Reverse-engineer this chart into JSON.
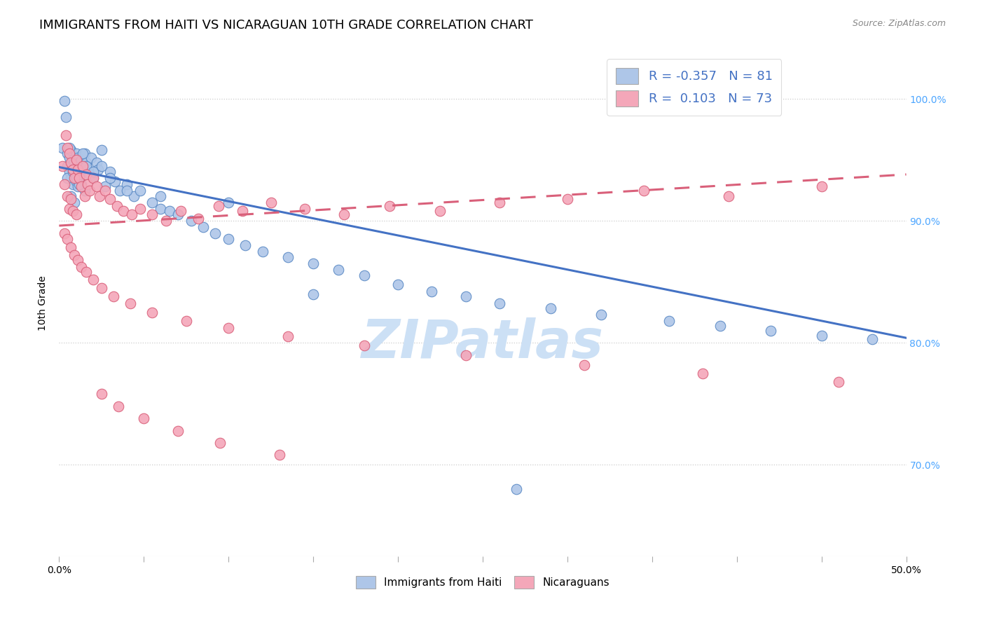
{
  "title": "IMMIGRANTS FROM HAITI VS NICARAGUAN 10TH GRADE CORRELATION CHART",
  "source_text": "Source: ZipAtlas.com",
  "ylabel": "10th Grade",
  "legend_label_haiti": "Immigrants from Haiti",
  "legend_label_nic": "Nicaraguans",
  "haiti_color": "#aec6e8",
  "nic_color": "#f4a7b9",
  "haiti_edge_color": "#5b8ac5",
  "nic_edge_color": "#d9607a",
  "haiti_line_color": "#4472c4",
  "nic_line_color": "#d9607a",
  "title_fontsize": 13,
  "axis_label_fontsize": 10,
  "tick_fontsize": 10,
  "right_tick_color": "#4da6ff",
  "xmin": 0.0,
  "xmax": 0.5,
  "ymin": 0.625,
  "ymax": 1.04,
  "watermark_text": "ZIPatlas",
  "watermark_color": "#cce0f5",
  "haiti_line_x0": 0.0,
  "haiti_line_y0": 0.944,
  "haiti_line_x1": 0.5,
  "haiti_line_y1": 0.804,
  "nic_line_x0": 0.0,
  "nic_line_y0": 0.896,
  "nic_line_x1": 0.5,
  "nic_line_y1": 0.938,
  "haiti_scatter_x": [
    0.002,
    0.003,
    0.004,
    0.005,
    0.005,
    0.006,
    0.006,
    0.007,
    0.007,
    0.008,
    0.008,
    0.009,
    0.009,
    0.01,
    0.01,
    0.011,
    0.011,
    0.012,
    0.012,
    0.013,
    0.013,
    0.014,
    0.015,
    0.015,
    0.016,
    0.017,
    0.018,
    0.019,
    0.02,
    0.022,
    0.023,
    0.025,
    0.027,
    0.03,
    0.033,
    0.036,
    0.04,
    0.044,
    0.048,
    0.055,
    0.06,
    0.065,
    0.07,
    0.078,
    0.085,
    0.092,
    0.1,
    0.11,
    0.12,
    0.135,
    0.15,
    0.165,
    0.18,
    0.2,
    0.22,
    0.24,
    0.26,
    0.29,
    0.32,
    0.36,
    0.39,
    0.42,
    0.45,
    0.48,
    0.005,
    0.006,
    0.007,
    0.008,
    0.009,
    0.01,
    0.012,
    0.014,
    0.016,
    0.02,
    0.025,
    0.03,
    0.04,
    0.06,
    0.1,
    0.15,
    0.27
  ],
  "haiti_scatter_y": [
    0.96,
    0.998,
    0.985,
    0.955,
    0.945,
    0.952,
    0.94,
    0.958,
    0.935,
    0.95,
    0.93,
    0.948,
    0.938,
    0.955,
    0.932,
    0.952,
    0.928,
    0.948,
    0.936,
    0.95,
    0.93,
    0.945,
    0.955,
    0.925,
    0.948,
    0.942,
    0.938,
    0.952,
    0.935,
    0.948,
    0.942,
    0.958,
    0.928,
    0.94,
    0.932,
    0.925,
    0.93,
    0.92,
    0.925,
    0.915,
    0.91,
    0.908,
    0.905,
    0.9,
    0.895,
    0.89,
    0.885,
    0.88,
    0.875,
    0.87,
    0.865,
    0.86,
    0.855,
    0.848,
    0.842,
    0.838,
    0.832,
    0.828,
    0.823,
    0.818,
    0.814,
    0.81,
    0.806,
    0.803,
    0.935,
    0.96,
    0.92,
    0.94,
    0.915,
    0.935,
    0.93,
    0.955,
    0.945,
    0.94,
    0.945,
    0.935,
    0.925,
    0.92,
    0.915,
    0.84,
    0.68
  ],
  "nic_scatter_x": [
    0.002,
    0.003,
    0.004,
    0.005,
    0.005,
    0.006,
    0.006,
    0.007,
    0.007,
    0.008,
    0.008,
    0.009,
    0.01,
    0.01,
    0.011,
    0.012,
    0.013,
    0.014,
    0.015,
    0.016,
    0.017,
    0.018,
    0.02,
    0.022,
    0.024,
    0.027,
    0.03,
    0.034,
    0.038,
    0.043,
    0.048,
    0.055,
    0.063,
    0.072,
    0.082,
    0.094,
    0.108,
    0.125,
    0.145,
    0.168,
    0.195,
    0.225,
    0.26,
    0.3,
    0.345,
    0.395,
    0.45,
    0.003,
    0.005,
    0.007,
    0.009,
    0.011,
    0.013,
    0.016,
    0.02,
    0.025,
    0.032,
    0.042,
    0.055,
    0.075,
    0.1,
    0.135,
    0.18,
    0.24,
    0.31,
    0.38,
    0.46,
    0.025,
    0.035,
    0.05,
    0.07,
    0.095,
    0.13
  ],
  "nic_scatter_y": [
    0.945,
    0.93,
    0.97,
    0.96,
    0.92,
    0.955,
    0.91,
    0.948,
    0.918,
    0.942,
    0.908,
    0.935,
    0.95,
    0.905,
    0.942,
    0.935,
    0.928,
    0.945,
    0.92,
    0.938,
    0.93,
    0.925,
    0.935,
    0.928,
    0.92,
    0.925,
    0.918,
    0.912,
    0.908,
    0.905,
    0.91,
    0.905,
    0.9,
    0.908,
    0.902,
    0.912,
    0.908,
    0.915,
    0.91,
    0.905,
    0.912,
    0.908,
    0.915,
    0.918,
    0.925,
    0.92,
    0.928,
    0.89,
    0.885,
    0.878,
    0.872,
    0.868,
    0.862,
    0.858,
    0.852,
    0.845,
    0.838,
    0.832,
    0.825,
    0.818,
    0.812,
    0.805,
    0.798,
    0.79,
    0.782,
    0.775,
    0.768,
    0.758,
    0.748,
    0.738,
    0.728,
    0.718,
    0.708
  ]
}
